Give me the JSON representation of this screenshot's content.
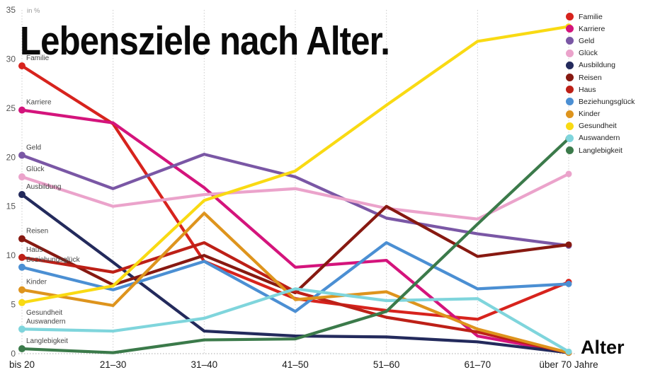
{
  "title": "Lebensziele nach Alter.",
  "y_axis": {
    "unit_label": "in %",
    "ticks": [
      0,
      5,
      10,
      15,
      20,
      25,
      30,
      35
    ],
    "min": 0,
    "max": 35
  },
  "x_axis": {
    "label": "Alter",
    "categories": [
      "bis 20",
      "21–30",
      "31–40",
      "41–50",
      "51–60",
      "61–70",
      "über 70 Jahre"
    ]
  },
  "chart_data": {
    "type": "line",
    "title": "Lebensziele nach Alter.",
    "xlabel": "Alter",
    "ylabel": "in %",
    "ylim": [
      0,
      35
    ],
    "grid": "dotted vertical line per category, dotted zero baseline",
    "legend_position": "top-right",
    "categories": [
      "bis 20",
      "21–30",
      "31–40",
      "41–50",
      "51–60",
      "61–70",
      "über 70 Jahre"
    ],
    "series": [
      {
        "name": "Familie",
        "color": "#d7231d",
        "values": [
          29.3,
          23.4,
          9.4,
          5.6,
          4.4,
          3.5,
          7.3
        ],
        "start_label_below": false
      },
      {
        "name": "Karriere",
        "color": "#d4147c",
        "values": [
          24.8,
          23.5,
          16.9,
          8.8,
          9.5,
          1.8,
          0.1
        ],
        "start_label_below": false
      },
      {
        "name": "Geld",
        "color": "#7a57a5",
        "values": [
          20.2,
          16.8,
          20.3,
          18.0,
          13.8,
          12.2,
          11.0
        ],
        "start_label_below": false
      },
      {
        "name": "Glück",
        "color": "#eba3cb",
        "values": [
          18.0,
          15.0,
          16.2,
          16.8,
          14.8,
          13.7,
          18.3
        ],
        "start_label_below": false
      },
      {
        "name": "Ausbildung",
        "color": "#232a5c",
        "values": [
          16.2,
          9.3,
          2.3,
          1.8,
          1.7,
          1.2,
          0.1
        ],
        "start_label_below": false
      },
      {
        "name": "Reisen",
        "color": "#871911",
        "values": [
          11.7,
          7.0,
          10.0,
          6.2,
          15.0,
          9.9,
          11.1
        ],
        "start_label_below": false
      },
      {
        "name": "Haus",
        "color": "#bd2017",
        "values": [
          9.8,
          8.3,
          11.3,
          6.3,
          3.7,
          2.2,
          0.1
        ],
        "start_label_below": false
      },
      {
        "name": "Beziehungsglück",
        "color": "#4b8fd3",
        "values": [
          8.8,
          6.5,
          9.4,
          4.3,
          11.3,
          6.6,
          7.1
        ],
        "start_label_below": false
      },
      {
        "name": "Kinder",
        "color": "#de941d",
        "values": [
          6.5,
          4.9,
          14.3,
          5.5,
          6.3,
          2.5,
          0.1
        ],
        "start_label_below": false
      },
      {
        "name": "Gesundheit",
        "color": "#f9da13",
        "values": [
          5.2,
          6.9,
          15.6,
          18.6,
          25.3,
          31.8,
          33.3
        ],
        "start_label_below": true
      },
      {
        "name": "Auswandern",
        "color": "#7fd5dc",
        "values": [
          2.5,
          2.3,
          3.6,
          6.6,
          5.4,
          5.6,
          0.2
        ],
        "start_label_below": false
      },
      {
        "name": "Langlebigkeit",
        "color": "#3b7a4a",
        "values": [
          0.5,
          0.1,
          1.4,
          1.5,
          4.3,
          13.2,
          21.9
        ],
        "start_label_below": false
      }
    ]
  }
}
